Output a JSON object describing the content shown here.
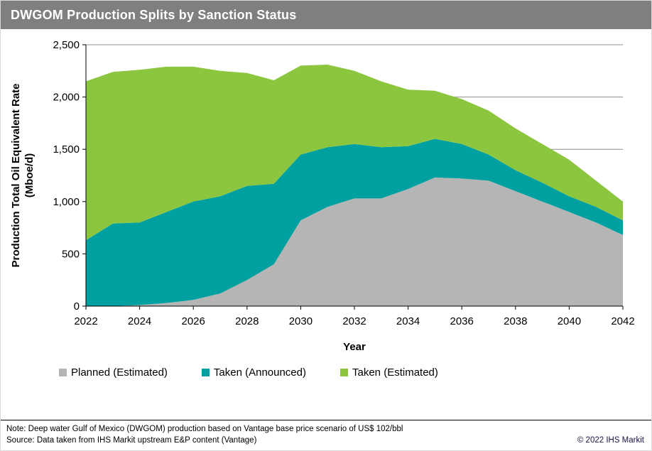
{
  "title_bar": {
    "title": "DWGOM Production Splits by Sanction Status"
  },
  "chart_data": {
    "type": "area",
    "stacked": true,
    "title": "DWGOM Production Splits by Sanction Status",
    "xlabel": "Year",
    "ylabel_line1": "Production  Total Oil Equivalent Rate",
    "ylabel_line2": "(Mboe/d)",
    "x": [
      2022,
      2023,
      2024,
      2025,
      2026,
      2027,
      2028,
      2029,
      2030,
      2031,
      2032,
      2033,
      2034,
      2035,
      2036,
      2037,
      2038,
      2039,
      2040,
      2041,
      2042
    ],
    "series": [
      {
        "name": "Planned (Estimated)",
        "color": "#b5b5b5",
        "values": [
          0,
          0,
          10,
          30,
          60,
          120,
          250,
          400,
          820,
          950,
          1030,
          1030,
          1120,
          1230,
          1220,
          1200,
          1100,
          1000,
          900,
          800,
          680
        ]
      },
      {
        "name": "Taken (Announced)",
        "color": "#00a0a0",
        "values": [
          630,
          790,
          790,
          870,
          940,
          930,
          900,
          770,
          630,
          570,
          520,
          490,
          410,
          370,
          330,
          250,
          200,
          180,
          150,
          150,
          140
        ]
      },
      {
        "name": "Taken (Estimated)",
        "color": "#8cc63e",
        "values": [
          1520,
          1450,
          1460,
          1390,
          1290,
          1200,
          1080,
          990,
          850,
          790,
          700,
          630,
          540,
          460,
          430,
          420,
          400,
          370,
          350,
          250,
          180
        ]
      }
    ],
    "ylim": [
      0,
      2500
    ],
    "ytick_values": [
      0,
      500,
      1000,
      1500,
      2000,
      2500
    ],
    "ytick_labels": [
      "0",
      "500",
      "1,000",
      "1,500",
      "2,000",
      "2,500"
    ],
    "xtick_labels": [
      "2022",
      "2024",
      "2026",
      "2028",
      "2030",
      "2032",
      "2034",
      "2036",
      "2038",
      "2040",
      "2042"
    ],
    "grid": true,
    "legend_position": "bottom"
  },
  "legend": {
    "items": [
      {
        "label": "Planned (Estimated)",
        "color": "#b5b5b5"
      },
      {
        "label": "Taken (Announced)",
        "color": "#00a0a0"
      },
      {
        "label": "Taken (Estimated)",
        "color": "#8cc63e"
      }
    ]
  },
  "footer": {
    "note": "Note: Deep water Gulf of Mexico (DWGOM) production based on Vantage base price scenario of US$ 102/bbl",
    "source": "Source: Data taken from IHS Markit upstream E&P content (Vantage)",
    "copyright": "© 2022 IHS Markit"
  }
}
